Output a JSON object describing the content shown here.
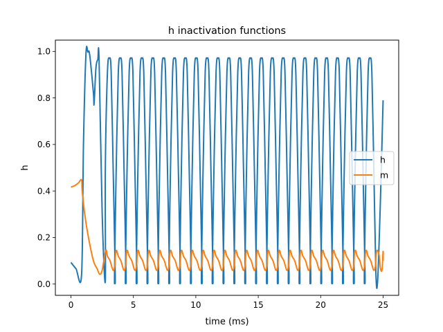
{
  "chart_data": {
    "type": "line",
    "title": "h inactivation functions",
    "xlabel": "time (ms)",
    "ylabel": "h",
    "xlim": [
      -1.25,
      26.25
    ],
    "ylim": [
      -0.0485,
      1.0485
    ],
    "xticks": [
      0,
      5,
      10,
      15,
      20,
      25
    ],
    "xtick_labels": [
      "0",
      "5",
      "10",
      "15",
      "20",
      "25"
    ],
    "yticks": [
      0.0,
      0.2,
      0.4,
      0.6,
      0.8,
      1.0
    ],
    "ytick_labels": [
      "0.0",
      "0.2",
      "0.4",
      "0.6",
      "0.8",
      "1.0"
    ],
    "grid": false,
    "legend": {
      "position": "center-right",
      "entries": [
        "h",
        "m"
      ]
    },
    "series": [
      {
        "name": "h",
        "color": "#1f77b4",
        "shape": "approximate oscillation traced from the figure",
        "initial_points": [
          [
            0.0,
            0.093
          ],
          [
            0.4,
            0.066
          ],
          [
            0.85,
            0.042
          ],
          [
            1.0,
            0.6
          ],
          [
            1.2,
            0.99
          ],
          [
            1.35,
            0.997
          ],
          [
            1.5,
            0.985
          ],
          [
            1.8,
            0.82
          ],
          [
            1.85,
            0.775
          ],
          [
            2.0,
            0.93
          ],
          [
            2.15,
            0.965
          ],
          [
            2.25,
            0.965
          ],
          [
            2.5,
            0.3
          ],
          [
            2.75,
            0.01
          ]
        ],
        "peaks_x": [
          3.08,
          3.95,
          4.82,
          5.69,
          6.56,
          7.43,
          8.3,
          9.17,
          10.04,
          10.91,
          11.78,
          12.65,
          13.52,
          14.39,
          15.26,
          16.13,
          17.0,
          17.87,
          18.74,
          19.61,
          20.48,
          21.35,
          22.22,
          23.09,
          23.96
        ],
        "peak_value": 0.97,
        "trough_value": 0.012,
        "end_point": [
          25.0,
          0.79
        ]
      },
      {
        "name": "m",
        "color": "#ff7f0e",
        "shape": "approximate oscillation traced from the figure",
        "initial_points": [
          [
            0.0,
            0.417
          ],
          [
            0.3,
            0.423
          ],
          [
            0.6,
            0.435
          ],
          [
            0.85,
            0.448
          ],
          [
            0.9,
            0.4
          ],
          [
            1.1,
            0.3
          ],
          [
            1.4,
            0.2
          ],
          [
            1.8,
            0.1
          ],
          [
            2.1,
            0.065
          ],
          [
            2.3,
            0.042
          ],
          [
            2.5,
            0.06
          ],
          [
            2.78,
            0.145
          ]
        ],
        "peaks_x": [
          2.78,
          3.65,
          4.52,
          5.39,
          6.26,
          7.13,
          8.0,
          8.87,
          9.74,
          10.61,
          11.48,
          12.35,
          13.22,
          14.09,
          14.96,
          15.83,
          16.7,
          17.57,
          18.44,
          19.31,
          20.18,
          21.05,
          21.92,
          22.79,
          23.66,
          24.53
        ],
        "peak_value": 0.145,
        "trough_value": 0.06,
        "end_point": [
          25.0,
          0.1
        ]
      }
    ]
  }
}
